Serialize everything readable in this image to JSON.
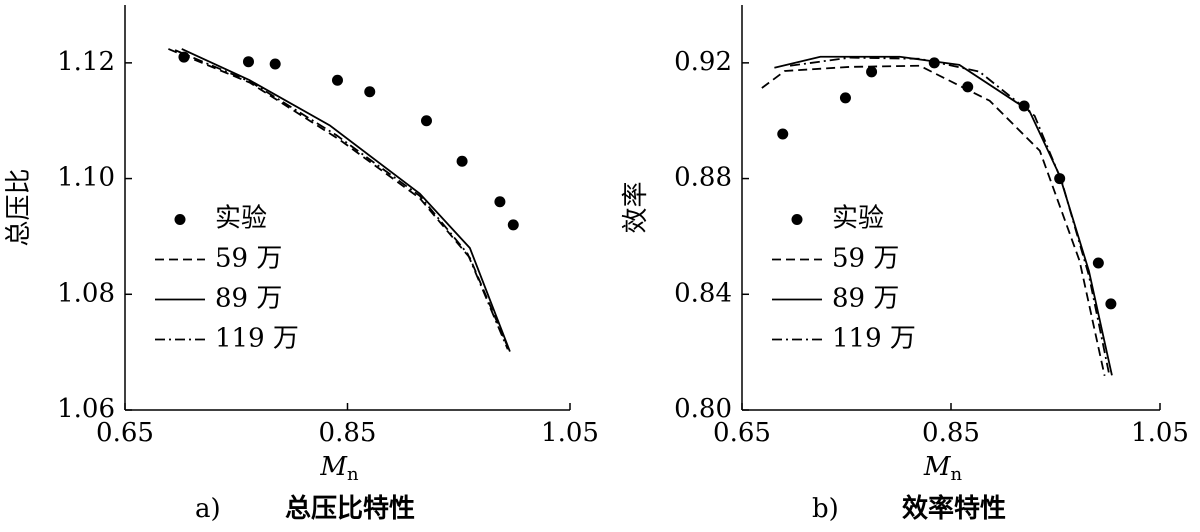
{
  "chart_data": [
    {
      "type": "line",
      "ylabel": "总压比",
      "xlabel": "M",
      "xlabel_sub": "n",
      "caption_label": "a)",
      "caption": "总压比特性",
      "xlim": [
        0.65,
        1.05
      ],
      "ylim": [
        1.06,
        1.13
      ],
      "xticks": [
        0.65,
        0.85,
        1.05
      ],
      "yticks": [
        1.06,
        1.08,
        {
          "value": 1.1,
          "label": "1.10"
        },
        1.12
      ],
      "legend": "center left",
      "series": [
        {
          "name": "实验",
          "color": "#000000",
          "marker": true,
          "x": [
            0.703,
            0.761,
            0.785,
            0.841,
            0.87,
            0.921,
            0.953,
            0.987,
            0.999
          ],
          "values": [
            1.121,
            1.1202,
            1.1198,
            1.117,
            1.115,
            1.11,
            1.103,
            1.096,
            1.092
          ]
        },
        {
          "name": "59 万",
          "color": "#000000",
          "linestyle": "dashed",
          "x": [
            0.689,
            0.762,
            0.843,
            0.915,
            0.96,
            0.996
          ],
          "values": [
            1.1224,
            1.1166,
            1.1067,
            1.0966,
            1.0863,
            1.07
          ]
        },
        {
          "name": "89 万",
          "color": "#000000",
          "linestyle": "solid",
          "x": [
            0.701,
            0.762,
            0.834,
            0.915,
            0.96,
            0.996
          ],
          "values": [
            1.1224,
            1.117,
            1.1092,
            1.0974,
            1.088,
            1.0701
          ]
        },
        {
          "name": "119 万",
          "color": "#000000",
          "linestyle": "dashdot",
          "x": [
            0.695,
            0.762,
            0.84,
            0.915,
            0.958,
            0.994
          ],
          "values": [
            1.1222,
            1.1168,
            1.1075,
            1.097,
            1.087,
            1.0705
          ]
        }
      ]
    },
    {
      "type": "line",
      "ylabel": "效率",
      "xlabel": "M",
      "xlabel_sub": "n",
      "caption_label": "b)",
      "caption": "效率特性",
      "xlim": [
        0.65,
        1.05
      ],
      "ylim": [
        0.8,
        0.94
      ],
      "xticks": [
        0.65,
        0.85,
        1.05
      ],
      "yticks": [
        {
          "value": 0.8,
          "label": "0.80"
        },
        0.84,
        0.88,
        0.92
      ],
      "legend": "center left",
      "series": [
        {
          "name": "实验",
          "color": "#000000",
          "marker": true,
          "x": [
            0.689,
            0.749,
            0.774,
            0.834,
            0.866,
            0.92,
            0.954,
            0.991,
            1.003
          ],
          "values": [
            0.8954,
            0.9079,
            0.9169,
            0.92,
            0.9117,
            0.9051,
            0.88,
            0.8508,
            0.8367
          ]
        },
        {
          "name": "59 万",
          "color": "#000000",
          "linestyle": "dashed",
          "x": [
            0.669,
            0.691,
            0.753,
            0.82,
            0.887,
            0.935,
            0.973,
            0.997
          ],
          "values": [
            0.9113,
            0.9172,
            0.9186,
            0.919,
            0.9069,
            0.8896,
            0.8516,
            0.8118
          ]
        },
        {
          "name": "89 万",
          "color": "#000000",
          "linestyle": "solid",
          "x": [
            0.681,
            0.725,
            0.801,
            0.858,
            0.925,
            0.954,
            0.982,
            1.004
          ],
          "values": [
            0.9183,
            0.9221,
            0.9221,
            0.9193,
            0.9034,
            0.881,
            0.848,
            0.812
          ]
        },
        {
          "name": "119 万",
          "color": "#000000",
          "linestyle": "dashdot",
          "x": [
            0.696,
            0.753,
            0.82,
            0.877,
            0.93,
            0.956,
            0.982,
            1.001
          ],
          "values": [
            0.919,
            0.9218,
            0.9214,
            0.917,
            0.9017,
            0.879,
            0.8464,
            0.813
          ]
        }
      ]
    }
  ]
}
